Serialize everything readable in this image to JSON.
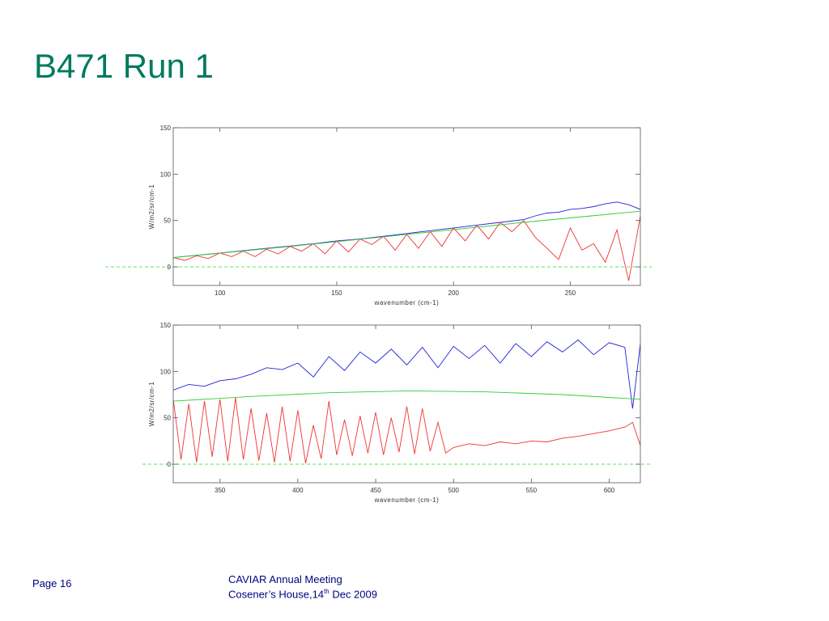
{
  "slide": {
    "title": "B471 Run 1"
  },
  "footer": {
    "page_label": "Page 16",
    "meeting_line": "CAVIAR Annual Meeting",
    "venue_prefix": "Cosener’s House,14",
    "venue_sup": "th",
    "venue_suffix": " Dec 2009"
  },
  "chart_data": [
    {
      "type": "line",
      "xlabel": "wavenumber (cm-1)",
      "ylabel": "W/m2/sr/cm-1",
      "xlim": [
        80,
        280
      ],
      "ylim": [
        -20,
        150
      ],
      "xticks": [
        100,
        150,
        200,
        250
      ],
      "yticks": [
        0,
        50,
        100,
        150
      ],
      "grid": false,
      "reference_line": {
        "y": 0,
        "style": "dashed",
        "color": "#44dd44"
      },
      "series": [
        {
          "color": "#2222dd",
          "x": [
            80,
            90,
            100,
            110,
            120,
            130,
            140,
            150,
            160,
            170,
            180,
            190,
            200,
            210,
            220,
            230,
            235,
            240,
            245,
            250,
            255,
            260,
            265,
            270,
            275,
            280
          ],
          "y": [
            10,
            12.5,
            15,
            17.5,
            20,
            22.5,
            25,
            28,
            30,
            33,
            36,
            39,
            42,
            45,
            48,
            51,
            55,
            58,
            59,
            62,
            63,
            65,
            68,
            70,
            67,
            62
          ]
        },
        {
          "color": "#ee3333",
          "x": [
            80,
            85,
            90,
            95,
            100,
            105,
            110,
            115,
            120,
            125,
            130,
            135,
            140,
            145,
            150,
            155,
            160,
            165,
            170,
            175,
            180,
            185,
            190,
            195,
            200,
            205,
            210,
            215,
            220,
            225,
            230,
            235,
            240,
            245,
            250,
            255,
            260,
            265,
            270,
            275,
            280
          ],
          "y": [
            10,
            7,
            12,
            9,
            15,
            11,
            17,
            11,
            19,
            14,
            22,
            17,
            25,
            14,
            28,
            16,
            30,
            24,
            33,
            18,
            35,
            20,
            38,
            22,
            42,
            28,
            45,
            30,
            48,
            38,
            50,
            32,
            20,
            8,
            42,
            18,
            25,
            5,
            40,
            -15,
            55
          ]
        },
        {
          "color": "#33cc33",
          "x": [
            80,
            130,
            180,
            230,
            280
          ],
          "y": [
            10,
            22,
            35,
            48,
            60
          ]
        }
      ]
    },
    {
      "type": "line",
      "xlabel": "wavenumber (cm-1)",
      "ylabel": "W/m2/sr/cm-1",
      "xlim": [
        320,
        620
      ],
      "ylim": [
        -20,
        150
      ],
      "xticks": [
        350,
        400,
        450,
        500,
        550,
        600
      ],
      "yticks": [
        0,
        50,
        100,
        150
      ],
      "grid": false,
      "reference_line": {
        "y": 0,
        "style": "dashed",
        "color": "#44dd44"
      },
      "series": [
        {
          "color": "#2222dd",
          "x": [
            320,
            330,
            340,
            350,
            360,
            370,
            380,
            390,
            400,
            410,
            420,
            430,
            440,
            450,
            460,
            470,
            480,
            490,
            500,
            510,
            520,
            530,
            540,
            550,
            560,
            570,
            580,
            590,
            600,
            610,
            615,
            620
          ],
          "y": [
            80,
            86,
            84,
            90,
            92,
            97,
            104,
            102,
            109,
            94,
            116,
            101,
            121,
            109,
            124,
            107,
            126,
            104,
            127,
            114,
            128,
            109,
            130,
            116,
            132,
            121,
            134,
            118,
            131,
            126,
            60,
            130
          ]
        },
        {
          "color": "#ee3333",
          "x": [
            320,
            325,
            330,
            335,
            340,
            345,
            350,
            355,
            360,
            365,
            370,
            375,
            380,
            385,
            390,
            395,
            400,
            405,
            410,
            415,
            420,
            425,
            430,
            435,
            440,
            445,
            450,
            455,
            460,
            465,
            470,
            475,
            480,
            485,
            490,
            495,
            500,
            510,
            520,
            530,
            540,
            550,
            560,
            570,
            580,
            590,
            600,
            610,
            615,
            620
          ],
          "y": [
            70,
            5,
            65,
            2,
            68,
            8,
            70,
            3,
            72,
            5,
            60,
            4,
            55,
            2,
            62,
            3,
            58,
            1,
            42,
            6,
            68,
            10,
            48,
            9,
            52,
            12,
            56,
            10,
            50,
            13,
            62,
            11,
            60,
            14,
            45,
            12,
            18,
            22,
            20,
            24,
            22,
            25,
            24,
            28,
            30,
            33,
            36,
            40,
            45,
            20
          ]
        },
        {
          "color": "#33cc33",
          "x": [
            320,
            370,
            420,
            470,
            520,
            570,
            620
          ],
          "y": [
            68,
            73,
            77,
            79,
            78,
            75,
            70
          ]
        }
      ]
    }
  ]
}
